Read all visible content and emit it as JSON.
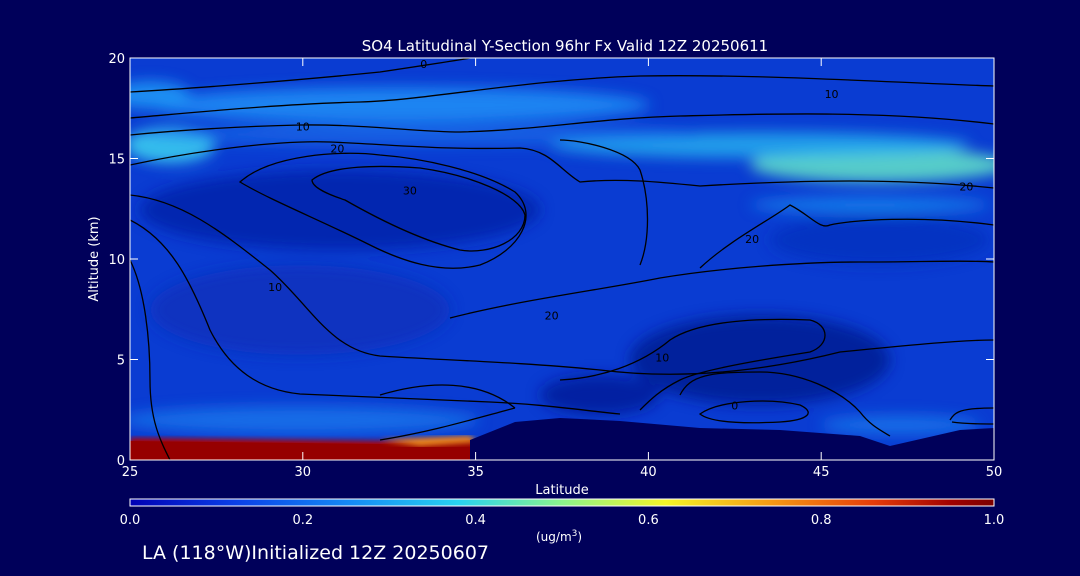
{
  "chart_data": {
    "type": "heatmap",
    "title": "SO4 Latitudinal Y-Section 96hr  Fx Valid 12Z 20250611",
    "xlabel": "Latitude",
    "ylabel": "Altitude (km)",
    "xlim": [
      25,
      50
    ],
    "ylim": [
      0,
      20
    ],
    "x_ticks": [
      "25",
      "30",
      "35",
      "40",
      "45",
      "50"
    ],
    "y_ticks": [
      "0",
      "5",
      "10",
      "15",
      "20"
    ],
    "contour_labels": [
      {
        "text": "0",
        "lat": 33.5,
        "alt": 19.7
      },
      {
        "text": "10",
        "lat": 30,
        "alt": 16.6
      },
      {
        "text": "20",
        "lat": 31.0,
        "alt": 15.5
      },
      {
        "text": "30",
        "lat": 33.1,
        "alt": 13.4
      },
      {
        "text": "10",
        "lat": 29.2,
        "alt": 8.6
      },
      {
        "text": "20",
        "lat": 37.2,
        "alt": 7.2
      },
      {
        "text": "10",
        "lat": 40.4,
        "alt": 5.1
      },
      {
        "text": "20",
        "lat": 43.0,
        "alt": 11.0
      },
      {
        "text": "0",
        "lat": 42.5,
        "alt": 2.7
      },
      {
        "text": "10",
        "lat": 45.3,
        "alt": 18.2
      },
      {
        "text": "20",
        "lat": 49.2,
        "alt": 13.6
      }
    ],
    "colorbar": {
      "ticks": [
        "0.0",
        "0.2",
        "0.4",
        "0.6",
        "0.8",
        "1.0"
      ],
      "unit_label": "(ug/m",
      "unit_sup": "3",
      "unit_close": ")",
      "colors": [
        "#0000b4",
        "#0a3ee6",
        "#1488f5",
        "#28d2f0",
        "#8cf58c",
        "#f5f528",
        "#f59b14",
        "#e63c0a",
        "#a00000",
        "#7a0000"
      ]
    }
  },
  "footer": {
    "text": "LA (118°W)Initialized 12Z 20250607"
  }
}
